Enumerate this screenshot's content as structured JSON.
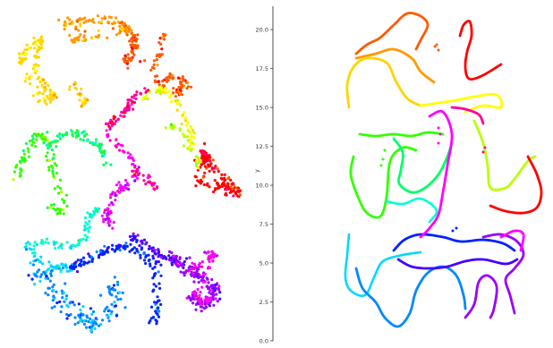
{
  "colors": {
    "axis": "#222222",
    "rainbow": [
      "#ff0000",
      "#ff5a00",
      "#ff9900",
      "#ffd400",
      "#ffff00",
      "#b8ff00",
      "#33ff00",
      "#00ff66",
      "#00ffcc",
      "#00d9ff",
      "#0088ff",
      "#0022ff",
      "#4400ff",
      "#9900ff",
      "#ff00ff",
      "#ff0099"
    ]
  },
  "chart_data": [
    {
      "type": "scatter",
      "title": "",
      "xlabel": "",
      "ylabel": "",
      "axes_visible": false,
      "description_of_marks": "points colored along a continuous rainbow colormap, forming a tangled closed curve in 2D"
    },
    {
      "type": "line",
      "title": "",
      "xlabel": "",
      "ylabel": "y",
      "ylim": [
        0.0,
        21.5
      ],
      "yticks": [
        "0.0",
        "2.5",
        "5.0",
        "7.5",
        "10.0",
        "12.5",
        "15.0",
        "17.5",
        "20.0"
      ],
      "ytick_values": [
        0.0,
        2.5,
        5.0,
        7.5,
        10.0,
        12.5,
        15.0,
        17.5,
        20.0
      ],
      "x_axis_visible": false,
      "grid": false,
      "description_of_marks": "thick trajectory line colored along a continuous rainbow colormap"
    }
  ]
}
